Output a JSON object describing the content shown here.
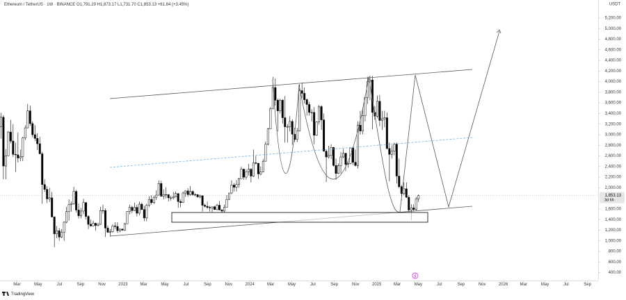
{
  "header": {
    "symbol": "Ethereum / TetherUS · 1W · BINANCE",
    "open": "O1,791.29",
    "high": "H1,873.17",
    "low": "L1,731.70",
    "close": "C1,853.13",
    "change": "+61.84 (+3.45%)"
  },
  "chart_data": {
    "type": "candlestick",
    "currency": "USDT",
    "open": [
      3150,
      3330,
      2410,
      2600,
      3050,
      2880,
      2630,
      2620,
      2560,
      2590,
      2940,
      3130,
      3450,
      3210,
      3000,
      2930,
      2830,
      2640,
      2060,
      1970,
      1790,
      1810,
      1450,
      1130,
      1190,
      1070,
      1160,
      1350,
      1550,
      1680,
      1700,
      1930,
      1580,
      1470,
      1560,
      1720,
      1460,
      1310,
      1280,
      1330,
      1290,
      1310,
      1570,
      1570,
      1240,
      1160,
      1170,
      1280,
      1270,
      1190,
      1220,
      1200,
      1320,
      1550,
      1630,
      1570,
      1630,
      1520,
      1690,
      1590,
      1430,
      1670,
      1780,
      1720,
      1820,
      1860,
      2080,
      1840,
      1870,
      1870,
      1810,
      1810,
      1830,
      1890,
      1740,
      1720,
      1900,
      1940,
      1870,
      1930,
      1870,
      1870,
      1830,
      1850,
      1670,
      1650,
      1630,
      1620,
      1640,
      1590,
      1670,
      1580,
      1560,
      1630,
      1780,
      1900,
      2050,
      2010,
      2060,
      2170,
      2350,
      2200,
      2300,
      2350,
      2220,
      2470,
      2460,
      2260,
      2300,
      2500,
      2820,
      3110,
      3490,
      3890,
      3650,
      3450,
      3650,
      3320,
      3150,
      3150,
      3250,
      3010,
      2910,
      3070,
      3830,
      3780,
      3660,
      3570,
      3420,
      3420,
      2990,
      3240,
      3530,
      3280,
      2690,
      2580,
      2610,
      2760,
      2420,
      2270,
      2420,
      2580,
      2650,
      2440,
      2460,
      2750,
      2480,
      2420,
      3180,
      3070,
      3360,
      3700,
      4000,
      4030,
      3420,
      3350,
      3630,
      3270,
      3300,
      3320,
      2740,
      2630,
      2690,
      2820,
      2220,
      2020,
      1890,
      1980,
      1820,
      1580,
      1620,
      1590,
      1791.29
    ],
    "high": [
      3410,
      3370,
      2730,
      3070,
      3280,
      3200,
      2850,
      3040,
      2720,
      2960,
      3180,
      3580,
      3550,
      3250,
      3180,
      3030,
      2960,
      2680,
      2160,
      2030,
      2000,
      1920,
      1460,
      1280,
      1240,
      1220,
      1370,
      1640,
      1780,
      1740,
      2020,
      1960,
      1700,
      1620,
      1790,
      1730,
      1480,
      1400,
      1380,
      1340,
      1340,
      1640,
      1680,
      1610,
      1290,
      1220,
      1310,
      1350,
      1350,
      1230,
      1230,
      1340,
      1560,
      1680,
      1660,
      1720,
      1680,
      1740,
      1720,
      1660,
      1700,
      1840,
      1860,
      1850,
      1950,
      2140,
      2130,
      1970,
      2010,
      1880,
      1850,
      1920,
      1930,
      1900,
      1780,
      1930,
      1950,
      1990,
      2030,
      1950,
      1900,
      1880,
      1870,
      1860,
      1700,
      1740,
      1660,
      1650,
      1660,
      1700,
      1750,
      1600,
      1680,
      1860,
      1900,
      2140,
      2090,
      2140,
      2190,
      2400,
      2360,
      2350,
      2450,
      2370,
      2720,
      2600,
      2470,
      2400,
      2540,
      2870,
      3130,
      3520,
      4090,
      4060,
      3680,
      3680,
      3670,
      3730,
      3200,
      3350,
      3290,
      3130,
      3130,
      3950,
      3980,
      3890,
      3680,
      3620,
      3480,
      3520,
      3250,
      3560,
      3560,
      3400,
      2720,
      2790,
      2820,
      2770,
      2550,
      2460,
      2670,
      2730,
      2660,
      2500,
      2760,
      2770,
      2720,
      3250,
      3450,
      3500,
      3740,
      4090,
      4110,
      4110,
      3540,
      3740,
      3750,
      3450,
      3450,
      3420,
      2850,
      2800,
      2850,
      2850,
      2550,
      2050,
      2100,
      2100,
      1860,
      1690,
      1690,
      1830,
      1873.17
    ],
    "low": [
      2930,
      2160,
      2160,
      2600,
      2840,
      2580,
      2300,
      2480,
      2500,
      2500,
      2900,
      3120,
      3170,
      2950,
      2880,
      2710,
      2630,
      1700,
      1920,
      1710,
      1730,
      1440,
      880,
      1050,
      1000,
      1050,
      1000,
      1330,
      1380,
      1550,
      1680,
      1530,
      1420,
      1420,
      1500,
      1400,
      1220,
      1270,
      1270,
      1190,
      1270,
      1300,
      1510,
      1070,
      1150,
      1080,
      1150,
      1220,
      1150,
      1160,
      1190,
      1190,
      1320,
      1500,
      1520,
      1560,
      1460,
      1480,
      1580,
      1370,
      1370,
      1640,
      1680,
      1690,
      1770,
      1860,
      1830,
      1780,
      1800,
      1740,
      1760,
      1780,
      1820,
      1620,
      1630,
      1720,
      1830,
      1830,
      1850,
      1850,
      1840,
      1810,
      1800,
      1550,
      1630,
      1600,
      1550,
      1530,
      1580,
      1570,
      1580,
      1520,
      1540,
      1630,
      1770,
      1880,
      1930,
      1930,
      2000,
      2170,
      2150,
      2150,
      2230,
      2100,
      2200,
      2440,
      2170,
      2230,
      2290,
      2500,
      2800,
      3110,
      3490,
      3550,
      3060,
      3400,
      3210,
      2850,
      2850,
      3060,
      2810,
      2860,
      2860,
      3060,
      3690,
      3590,
      3360,
      3360,
      3250,
      2820,
      2980,
      3190,
      3090,
      2680,
      2110,
      2550,
      2540,
      2400,
      2150,
      2260,
      2270,
      2560,
      2310,
      2380,
      2440,
      2430,
      2400,
      2360,
      3000,
      3010,
      3250,
      3580,
      3650,
      3100,
      3280,
      3310,
      3160,
      3090,
      3140,
      2720,
      2120,
      2550,
      2610,
      2080,
      1990,
      1760,
      1860,
      1810,
      1540,
      1390,
      1560,
      1570,
      1731.7
    ],
    "close": [
      3330,
      2410,
      2600,
      3050,
      2880,
      2630,
      2620,
      2560,
      2590,
      2940,
      3130,
      3450,
      3210,
      3000,
      2930,
      2830,
      2640,
      2060,
      1970,
      1790,
      1810,
      1450,
      1130,
      1190,
      1070,
      1160,
      1350,
      1550,
      1680,
      1700,
      1930,
      1580,
      1470,
      1560,
      1720,
      1460,
      1310,
      1280,
      1330,
      1290,
      1310,
      1570,
      1570,
      1240,
      1160,
      1170,
      1280,
      1270,
      1190,
      1220,
      1200,
      1320,
      1550,
      1630,
      1570,
      1630,
      1520,
      1690,
      1590,
      1430,
      1670,
      1780,
      1720,
      1820,
      1860,
      2080,
      1840,
      1870,
      1870,
      1810,
      1810,
      1830,
      1890,
      1740,
      1720,
      1900,
      1940,
      1870,
      1930,
      1870,
      1870,
      1830,
      1850,
      1670,
      1650,
      1630,
      1620,
      1640,
      1590,
      1670,
      1580,
      1560,
      1630,
      1780,
      1900,
      2050,
      2010,
      2060,
      2170,
      2350,
      2200,
      2300,
      2350,
      2220,
      2470,
      2460,
      2260,
      2300,
      2500,
      2820,
      3110,
      3490,
      3890,
      3650,
      3450,
      3650,
      3320,
      3150,
      3150,
      3250,
      3010,
      2910,
      3070,
      3830,
      3780,
      3660,
      3570,
      3420,
      3420,
      2990,
      3240,
      3530,
      3280,
      2690,
      2580,
      2610,
      2760,
      2420,
      2270,
      2420,
      2580,
      2650,
      2440,
      2460,
      2750,
      2480,
      2420,
      3180,
      3070,
      3360,
      3700,
      4000,
      4030,
      3420,
      3350,
      3630,
      3270,
      3300,
      3320,
      2740,
      2630,
      2690,
      2820,
      2220,
      2020,
      1890,
      1980,
      1820,
      1580,
      1620,
      1590,
      1791.29,
      1853.13
    ],
    "xlim": [
      -0.4,
      246
    ],
    "xticks": [
      {
        "value": 6.6,
        "label": "Mar"
      },
      {
        "value": 15.3,
        "label": "May"
      },
      {
        "value": 24.1,
        "label": "Jul"
      },
      {
        "value": 32.8,
        "label": "Sep"
      },
      {
        "value": 41.6,
        "label": "Nov"
      },
      {
        "value": 50.3,
        "label": "2023"
      },
      {
        "value": 58.8,
        "label": "Mar"
      },
      {
        "value": 67.5,
        "label": "May"
      },
      {
        "value": 76.2,
        "label": "Jul"
      },
      {
        "value": 85.1,
        "label": "Sep"
      },
      {
        "value": 93.8,
        "label": "Nov"
      },
      {
        "value": 102.5,
        "label": "2024"
      },
      {
        "value": 111.1,
        "label": "Mar"
      },
      {
        "value": 119.8,
        "label": "May"
      },
      {
        "value": 128.5,
        "label": "Jul"
      },
      {
        "value": 137.3,
        "label": "Sep"
      },
      {
        "value": 146.1,
        "label": "Nov"
      },
      {
        "value": 154.8,
        "label": "2025"
      },
      {
        "value": 163.2,
        "label": "Mar"
      },
      {
        "value": 171.9,
        "label": "May"
      },
      {
        "value": 180.6,
        "label": "Jul"
      },
      {
        "value": 189.5,
        "label": "Sep"
      },
      {
        "value": 198.2,
        "label": "Nov"
      },
      {
        "value": 206.9,
        "label": "2026"
      },
      {
        "value": 215.3,
        "label": "Mar"
      },
      {
        "value": 224.1,
        "label": "May"
      },
      {
        "value": 232.8,
        "label": "Jul"
      },
      {
        "value": 241.6,
        "label": "Sep"
      }
    ],
    "ylim": [
      250,
      5540
    ],
    "yticks": [
      {
        "value": 400,
        "label": "400.00"
      },
      {
        "value": 600,
        "label": "600.00"
      },
      {
        "value": 800,
        "label": "800.00"
      },
      {
        "value": 1000,
        "label": "1,000.00"
      },
      {
        "value": 1200,
        "label": "1,200.00"
      },
      {
        "value": 1400,
        "label": "1,400.00"
      },
      {
        "value": 1600,
        "label": "1,600.00"
      },
      {
        "value": 2000,
        "label": "2,000.00"
      },
      {
        "value": 2200,
        "label": "2,200.00"
      },
      {
        "value": 2400,
        "label": "2,400.00"
      },
      {
        "value": 2600,
        "label": "2,600.00"
      },
      {
        "value": 2800,
        "label": "2,800.00"
      },
      {
        "value": 3000,
        "label": "3,000.00"
      },
      {
        "value": 3200,
        "label": "3,200.00"
      },
      {
        "value": 3400,
        "label": "3,400.00"
      },
      {
        "value": 3600,
        "label": "3,600.00"
      },
      {
        "value": 3800,
        "label": "3,800.00"
      },
      {
        "value": 4000,
        "label": "4,000.00"
      },
      {
        "value": 4200,
        "label": "4,200.00"
      },
      {
        "value": 4400,
        "label": "4,400.00"
      },
      {
        "value": 4600,
        "label": "4,600.00"
      },
      {
        "value": 4800,
        "label": "4,800.00"
      },
      {
        "value": 5000,
        "label": "5,000.00"
      },
      {
        "value": 5200,
        "label": "5,200.00"
      }
    ],
    "last_price": {
      "value": 1853.13,
      "label": "1,853.13"
    },
    "countdown": "3d 6h",
    "colors": {
      "up": "#ffffff",
      "down": "#000000",
      "wick": "#000000"
    }
  },
  "footer": {
    "brand": "TradingView"
  }
}
